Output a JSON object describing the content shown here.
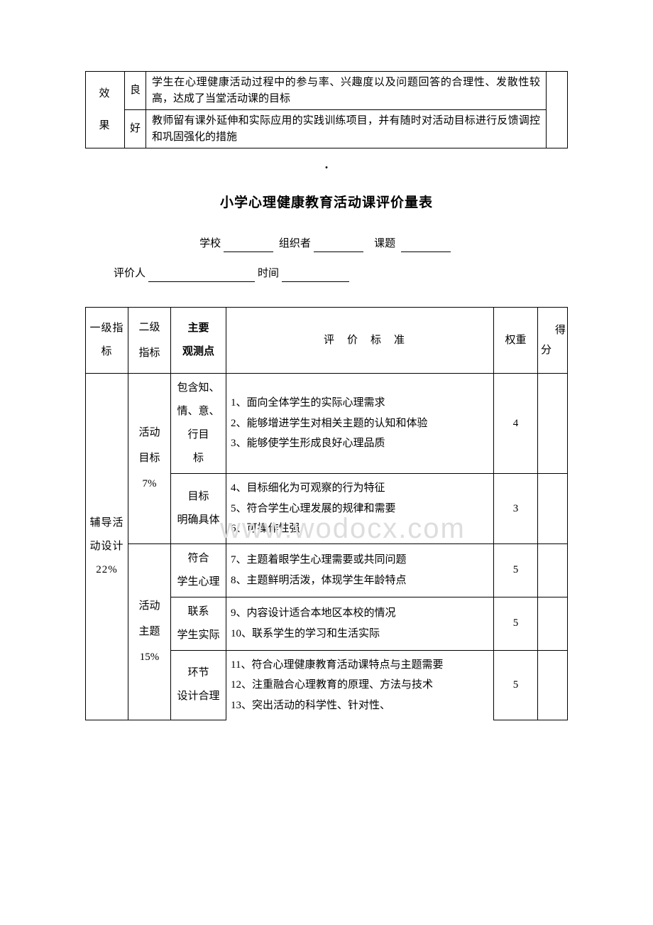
{
  "topTable": {
    "col1": "效\n果",
    "rows": [
      {
        "grade": "良",
        "desc": "学生在心理健康活动过程中的参与率、兴趣度以及问题回答的合理性、发散性较高，达成了当堂活动课的目标"
      },
      {
        "grade": "好",
        "desc": "教师留有课外延伸和实际应用的实践训练项目，并有随时对活动目标进行反馈调控和巩固强化的措施"
      }
    ]
  },
  "title": "小学心理健康教育活动课评价量表",
  "formLabels": {
    "school": "学校",
    "organizer": "组织者",
    "topic": "课题",
    "evaluator": "评价人",
    "time": "时间"
  },
  "headers": {
    "level1": "一级指标",
    "level2": "二级指标",
    "observation": "主要观测点",
    "criteria": "评价标准",
    "weight": "权重",
    "score": "得分"
  },
  "watermark": "www.wodocx.com",
  "mainRows": {
    "level1": "辅导活动设计\n22%",
    "level2a": "活动目标\n7%",
    "level2b": "活动主题\n15%",
    "obs1": "包含知、情、意、行目标",
    "obs2": "目标明确具体",
    "obs3": "符合学生心理",
    "obs4": "联系学生实际",
    "obs5": "环节设计合理",
    "crit1": "1、面向全体学生的实际心理需求\n2、能够增进学生对相关主题的认知和体验\n3、能够使学生形成良好心理品质",
    "crit2": "4、目标细化为可观察的行为特征\n5、符合学生心理发展的规律和需要\n6、可操作性强",
    "crit3": "7、主题着眼学生心理需要或共同问题\n8、主题鲜明活泼，体现学生年龄特点",
    "crit4": "9、内容设计适合本地区本校的情况\n10、联系学生的学习和生活实际",
    "crit5": "11、符合心理健康教育活动课特点与主题需要\n12、注重融合心理教育的原理、方法与技术\n13、突出活动的科学性、针对性、",
    "weight1": "4",
    "weight2": "3",
    "weight3": "5",
    "weight4": "5",
    "weight5": "5"
  }
}
